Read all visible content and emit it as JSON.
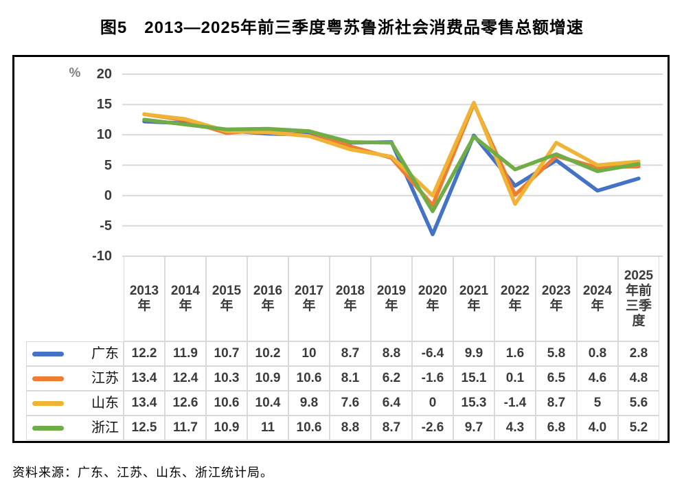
{
  "title": "图5　2013—2025年前三季度粤苏鲁浙社会消费品零售总额增速",
  "source_note": "资料来源：广东、江苏、山东、浙江统计局。",
  "chart_data": {
    "type": "line",
    "title": "2013—2025年前三季度粤苏鲁浙社会消费品零售总额增速",
    "unit_label": "%",
    "ylabel": "%",
    "xlabel": "",
    "ylim": [
      -10,
      20
    ],
    "y_ticks": [
      20,
      15,
      10,
      5,
      0,
      -5,
      -10
    ],
    "grid": true,
    "legend_position": "table-left",
    "gridline_color": "#d9d9d9",
    "categories": [
      "2013年",
      "2014年",
      "2015年",
      "2016年",
      "2017年",
      "2018年",
      "2019年",
      "2020年",
      "2021年",
      "2022年",
      "2023年",
      "2024年",
      "2025年前三季度"
    ],
    "series": [
      {
        "name": "广东",
        "color": "#4472C4",
        "values": [
          12.2,
          11.9,
          10.7,
          10.2,
          10,
          8.7,
          8.8,
          -6.4,
          9.9,
          1.6,
          5.8,
          0.8,
          2.8
        ],
        "labels": [
          "12.2",
          "11.9",
          "10.7",
          "10.2",
          "10",
          "8.7",
          "8.8",
          "-6.4",
          "9.9",
          "1.6",
          "5.8",
          "0.8",
          "2.8"
        ]
      },
      {
        "name": "江苏",
        "color": "#ED7D31",
        "values": [
          13.4,
          12.4,
          10.3,
          10.9,
          10.6,
          8.1,
          6.2,
          -1.6,
          15.1,
          0.1,
          6.5,
          4.6,
          4.8
        ],
        "labels": [
          "13.4",
          "12.4",
          "10.3",
          "10.9",
          "10.6",
          "8.1",
          "6.2",
          "-1.6",
          "15.1",
          "0.1",
          "6.5",
          "4.6",
          "4.8"
        ]
      },
      {
        "name": "山东",
        "color": "#EFB336",
        "values": [
          13.4,
          12.6,
          10.6,
          10.4,
          9.8,
          7.6,
          6.4,
          0,
          15.3,
          -1.4,
          8.7,
          5,
          5.6
        ],
        "labels": [
          "13.4",
          "12.6",
          "10.6",
          "10.4",
          "9.8",
          "7.6",
          "6.4",
          "0",
          "15.3",
          "-1.4",
          "8.7",
          "5",
          "5.6"
        ]
      },
      {
        "name": "浙江",
        "color": "#70AD47",
        "values": [
          12.5,
          11.7,
          10.9,
          11,
          10.6,
          8.8,
          8.7,
          -2.6,
          9.7,
          4.3,
          6.8,
          4,
          5.2
        ],
        "labels": [
          "12.5",
          "11.7",
          "10.9",
          "11",
          "10.6",
          "8.8",
          "8.7",
          "-2.6",
          "9.7",
          "4.3",
          "6.8",
          "4.0",
          "5.2"
        ]
      }
    ]
  }
}
